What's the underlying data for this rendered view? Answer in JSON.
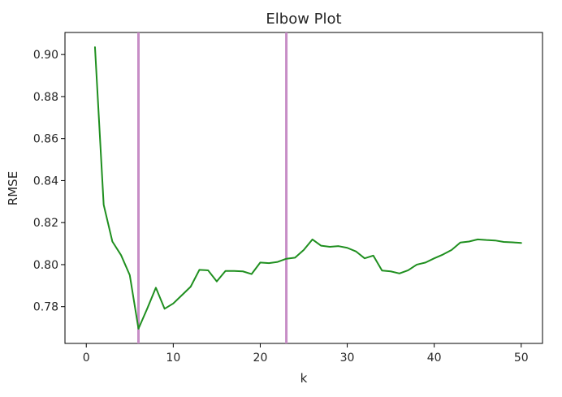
{
  "chart_data": {
    "type": "line",
    "title": "Elbow Plot",
    "xlabel": "k",
    "ylabel": "RMSE",
    "xlim": [
      -2.45,
      52.45
    ],
    "ylim": [
      0.7625,
      0.9105
    ],
    "xticks": [
      0,
      10,
      20,
      30,
      40,
      50
    ],
    "xtick_labels": [
      "0",
      "10",
      "20",
      "30",
      "40",
      "50"
    ],
    "yticks": [
      0.78,
      0.8,
      0.82,
      0.84,
      0.86,
      0.88,
      0.9
    ],
    "ytick_labels": [
      "0.78",
      "0.80",
      "0.82",
      "0.84",
      "0.86",
      "0.88",
      "0.90"
    ],
    "grid": false,
    "legend": "none",
    "series": [
      {
        "color": "#1f8f1f",
        "x": [
          1,
          2,
          3,
          4,
          5,
          6,
          7,
          8,
          9,
          10,
          11,
          12,
          13,
          14,
          15,
          16,
          17,
          18,
          19,
          20,
          21,
          22,
          23,
          24,
          25,
          26,
          27,
          28,
          29,
          30,
          31,
          32,
          33,
          34,
          35,
          36,
          37,
          38,
          39,
          40,
          41,
          42,
          43,
          44,
          45,
          46,
          47,
          48,
          49,
          50
        ],
        "y": [
          0.9035,
          0.8285,
          0.811,
          0.8045,
          0.795,
          0.7695,
          0.779,
          0.789,
          0.779,
          0.7815,
          0.7855,
          0.7895,
          0.7975,
          0.7973,
          0.792,
          0.797,
          0.797,
          0.7968,
          0.7955,
          0.801,
          0.8007,
          0.8013,
          0.8028,
          0.8033,
          0.807,
          0.812,
          0.809,
          0.8085,
          0.8088,
          0.808,
          0.8063,
          0.803,
          0.8043,
          0.7972,
          0.7968,
          0.7958,
          0.7973,
          0.8,
          0.801,
          0.803,
          0.8048,
          0.807,
          0.8105,
          0.811,
          0.812,
          0.8117,
          0.8115,
          0.8108,
          0.8106,
          0.8103
        ]
      }
    ],
    "vlines": [
      {
        "x": 6,
        "color": "#c78dc6"
      },
      {
        "x": 23,
        "color": "#c78dc6"
      }
    ]
  }
}
